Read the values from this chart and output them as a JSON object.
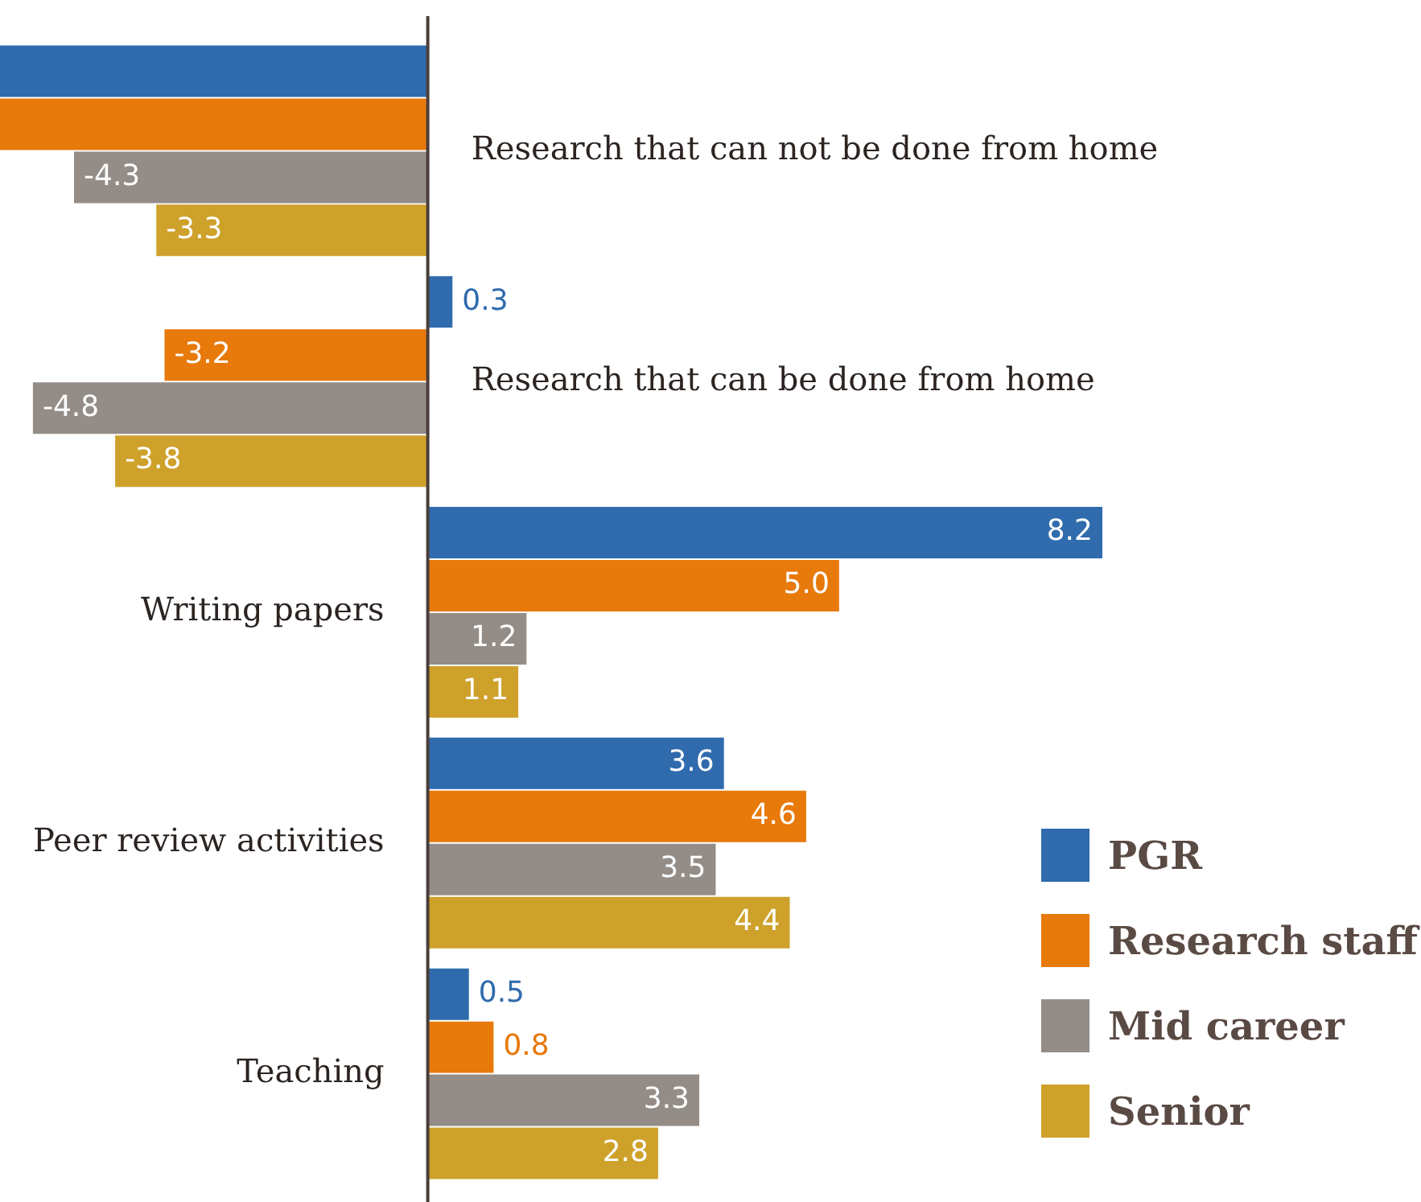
{
  "chart_data": {
    "type": "bar",
    "orientation": "horizontal",
    "categories": [
      "Research that can not be done from home",
      "Research that can be done from home",
      "Writing papers",
      "Peer review activities",
      "Teaching"
    ],
    "series": [
      {
        "name": "PGR",
        "color": "#2f6bad",
        "values": [
          -5.2,
          0.3,
          8.2,
          3.6,
          0.5
        ],
        "value_labels": [
          null,
          "0.3",
          "8.2",
          "3.6",
          "0.5"
        ]
      },
      {
        "name": "Research staff",
        "color": "#e8790b",
        "values": [
          -5.2,
          -3.2,
          5.0,
          4.6,
          0.8
        ],
        "value_labels": [
          null,
          "-3.2",
          "5.0",
          "4.6",
          "0.8"
        ]
      },
      {
        "name": "Mid career",
        "color": "#948d87",
        "values": [
          -4.3,
          -4.8,
          1.2,
          3.5,
          3.3
        ],
        "value_labels": [
          "-4.3",
          "-4.8",
          "1.2",
          "3.5",
          "3.3"
        ]
      },
      {
        "name": "Senior",
        "color": "#cea12b",
        "values": [
          -3.3,
          -3.8,
          1.1,
          4.4,
          2.8
        ],
        "value_labels": [
          "-3.3",
          "-3.8",
          "1.1",
          "4.4",
          "2.8"
        ]
      }
    ],
    "legend": "bottom right"
  }
}
